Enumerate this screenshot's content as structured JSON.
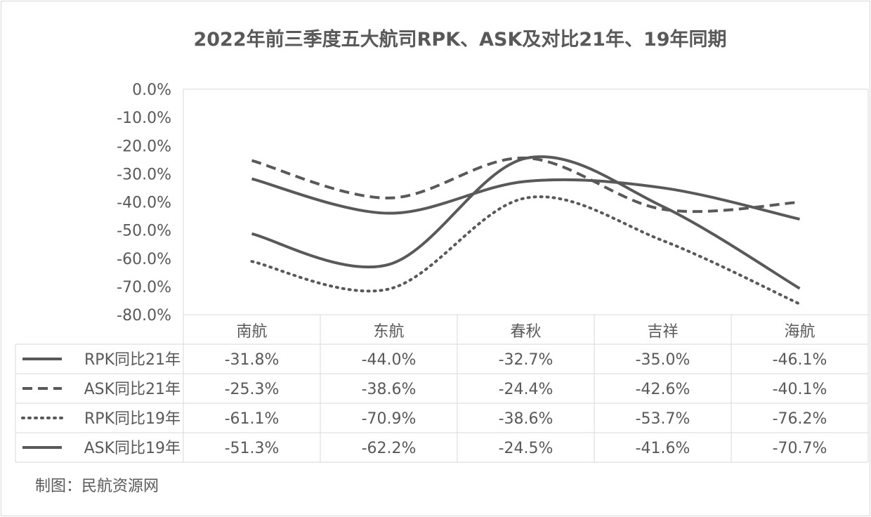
{
  "chart_data": {
    "type": "line",
    "title": "2022年前三季度五大航司RPK、ASK及对比21年、19年同期",
    "categories": [
      "南航",
      "东航",
      "春秋",
      "吉祥",
      "海航"
    ],
    "ylim": [
      -80,
      0
    ],
    "yticks": [
      "0.0%",
      "-10.0%",
      "-20.0%",
      "-30.0%",
      "-40.0%",
      "-50.0%",
      "-60.0%",
      "-70.0%",
      "-80.0%"
    ],
    "ytick_values": [
      0,
      -10,
      -20,
      -30,
      -40,
      -50,
      -60,
      -70,
      -80
    ],
    "grid": false,
    "legend": "data-table",
    "series": [
      {
        "name": "RPK同比21年",
        "style": "solid",
        "values": [
          -31.8,
          -44.0,
          -32.7,
          -35.0,
          -46.1
        ],
        "labels": [
          "-31.8%",
          "-44.0%",
          "-32.7%",
          "-35.0%",
          "-46.1%"
        ]
      },
      {
        "name": "ASK同比21年",
        "style": "dashed",
        "values": [
          -25.3,
          -38.6,
          -24.4,
          -42.6,
          -40.1
        ],
        "labels": [
          "-25.3%",
          "-38.6%",
          "-24.4%",
          "-42.6%",
          "-40.1%"
        ]
      },
      {
        "name": "RPK同比19年",
        "style": "dotted",
        "values": [
          -61.1,
          -70.9,
          -38.6,
          -53.7,
          -76.2
        ],
        "labels": [
          "-61.1%",
          "-70.9%",
          "-38.6%",
          "-53.7%",
          "-76.2%"
        ]
      },
      {
        "name": "ASK同比19年",
        "style": "solid",
        "values": [
          -51.3,
          -62.2,
          -24.5,
          -41.6,
          -70.7
        ],
        "labels": [
          "-51.3%",
          "-62.2%",
          "-24.5%",
          "-41.6%",
          "-70.7%"
        ]
      }
    ],
    "line_color": "#595959"
  },
  "source": "制图：民航资源网"
}
